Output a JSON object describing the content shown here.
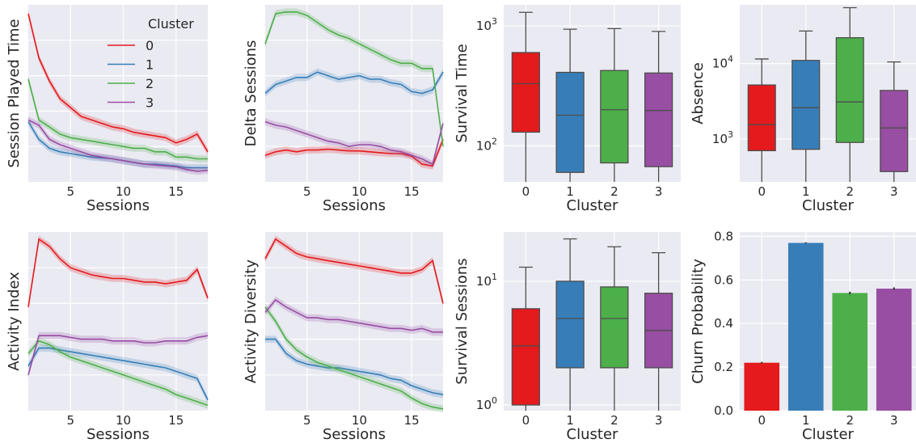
{
  "legend": {
    "title": "Cluster",
    "entries": [
      {
        "label": "0",
        "color": "#e41a1c"
      },
      {
        "label": "1",
        "color": "#377eb8"
      },
      {
        "label": "2",
        "color": "#4daf4a"
      },
      {
        "label": "3",
        "color": "#984ea3"
      }
    ]
  },
  "chart_data": [
    {
      "type": "line",
      "xlabel": "Sessions",
      "ylabel": "Session Played Time",
      "xlim": [
        1,
        18
      ],
      "ylim": [
        0,
        100
      ],
      "xticks": [
        "5",
        "10",
        "15"
      ],
      "yticks_shown": false,
      "x": [
        1,
        2,
        3,
        4,
        5,
        6,
        7,
        8,
        9,
        10,
        11,
        12,
        13,
        14,
        15,
        16,
        17,
        18
      ],
      "series": [
        {
          "name": "0",
          "values": [
            95,
            70,
            57,
            47,
            42,
            37,
            35,
            33,
            31,
            30,
            28,
            27,
            26,
            25,
            22,
            24,
            27,
            17
          ]
        },
        {
          "name": "1",
          "values": [
            34,
            24,
            19,
            17,
            16,
            15,
            14,
            13.5,
            13,
            12,
            11,
            10,
            10,
            9.5,
            9,
            8,
            8,
            8
          ]
        },
        {
          "name": "2",
          "values": [
            58,
            35,
            31,
            27,
            25,
            24,
            23,
            22,
            21,
            20,
            19,
            19,
            17,
            17,
            14,
            14,
            13,
            13
          ]
        },
        {
          "name": "3",
          "values": [
            35,
            32,
            24,
            21,
            19,
            17,
            15,
            14,
            13,
            12,
            11,
            10,
            9.5,
            9,
            8.5,
            7,
            6,
            6.5
          ]
        }
      ]
    },
    {
      "type": "line",
      "xlabel": "Sessions",
      "ylabel": "Delta Sessions",
      "xlim": [
        1,
        18
      ],
      "ylim": [
        0,
        100
      ],
      "xticks": [
        "5",
        "10",
        "15"
      ],
      "yticks_shown": false,
      "x": [
        1,
        2,
        3,
        4,
        5,
        6,
        7,
        8,
        9,
        10,
        11,
        12,
        13,
        14,
        15,
        16,
        17,
        18
      ],
      "series": [
        {
          "name": "0",
          "values": [
            15,
            17,
            18,
            17,
            18,
            18,
            18.5,
            18,
            17.5,
            17.5,
            17,
            16.5,
            16,
            16,
            14.5,
            10,
            9,
            24
          ]
        },
        {
          "name": "1",
          "values": [
            50,
            55,
            57,
            59,
            59,
            62,
            60,
            58,
            59,
            60,
            58,
            58,
            56,
            55,
            51,
            50,
            52,
            62
          ]
        },
        {
          "name": "2",
          "values": [
            78,
            95,
            96,
            96,
            94,
            90,
            86,
            83,
            81,
            78,
            75,
            72,
            69,
            67,
            67,
            64,
            64,
            20
          ]
        },
        {
          "name": "3",
          "values": [
            34,
            32,
            31,
            29,
            27,
            25,
            23,
            22,
            20,
            21,
            21,
            20,
            18,
            17,
            15,
            13,
            10,
            33
          ]
        }
      ]
    },
    {
      "type": "box",
      "xlabel": "Cluster",
      "ylabel": "Survival Time",
      "yscale": "log",
      "ylim": [
        50,
        1500
      ],
      "yticks": [
        "10^2",
        "10^3"
      ],
      "categories": [
        "0",
        "1",
        "2",
        "3"
      ],
      "boxes": [
        {
          "whislo": 50,
          "q1": 130,
          "med": 330,
          "q3": 600,
          "whishi": 1300
        },
        {
          "whislo": 50,
          "q1": 60,
          "med": 180,
          "q3": 410,
          "whishi": 940
        },
        {
          "whislo": 50,
          "q1": 72,
          "med": 200,
          "q3": 425,
          "whishi": 950
        },
        {
          "whislo": 50,
          "q1": 67,
          "med": 197,
          "q3": 405,
          "whishi": 900
        }
      ],
      "colors": [
        "#e41a1c",
        "#377eb8",
        "#4daf4a",
        "#984ea3"
      ]
    },
    {
      "type": "box",
      "xlabel": "Cluster",
      "ylabel": "Absence",
      "yscale": "log",
      "ylim": [
        270,
        60000
      ],
      "yticks": [
        "10^3",
        "10^4"
      ],
      "categories": [
        "0",
        "1",
        "2",
        "3"
      ],
      "boxes": [
        {
          "whislo": 270,
          "q1": 700,
          "med": 1550,
          "q3": 5200,
          "whishi": 11500
        },
        {
          "whislo": 270,
          "q1": 730,
          "med": 2600,
          "q3": 11000,
          "whishi": 27000
        },
        {
          "whislo": 270,
          "q1": 900,
          "med": 3100,
          "q3": 22000,
          "whishi": 55000
        },
        {
          "whislo": 270,
          "q1": 370,
          "med": 1400,
          "q3": 4400,
          "whishi": 10500
        }
      ],
      "colors": [
        "#e41a1c",
        "#377eb8",
        "#4daf4a",
        "#984ea3"
      ]
    },
    {
      "type": "line",
      "xlabel": "Sessions",
      "ylabel": "Activity Index",
      "xlim": [
        1,
        18
      ],
      "ylim": [
        0,
        100
      ],
      "xticks": [
        "5",
        "10",
        "15"
      ],
      "yticks_shown": false,
      "x": [
        1,
        2,
        3,
        4,
        5,
        6,
        7,
        8,
        9,
        10,
        11,
        12,
        13,
        14,
        15,
        16,
        17,
        18
      ],
      "series": [
        {
          "name": "0",
          "values": [
            58,
            96,
            92,
            85,
            80,
            78,
            76,
            75,
            74,
            74,
            73,
            72,
            72,
            71,
            72,
            73,
            79,
            63
          ]
        },
        {
          "name": "1",
          "values": [
            25,
            35,
            35,
            34,
            33,
            32,
            31,
            30,
            29,
            28,
            27,
            26,
            25,
            24,
            22,
            20,
            18,
            6
          ]
        },
        {
          "name": "2",
          "values": [
            32,
            39,
            37,
            33,
            30,
            28,
            26,
            24,
            22,
            20,
            18,
            16,
            14,
            12,
            9,
            7,
            5,
            3
          ]
        },
        {
          "name": "3",
          "values": [
            20,
            42,
            42,
            42,
            41,
            40,
            40,
            40,
            39,
            39,
            39,
            38,
            38,
            39,
            39,
            39,
            41,
            42
          ]
        }
      ]
    },
    {
      "type": "line",
      "xlabel": "Sessions",
      "ylabel": "Activity Diversity",
      "xlim": [
        1,
        18
      ],
      "ylim": [
        0,
        100
      ],
      "xticks": [
        "5",
        "10",
        "15"
      ],
      "yticks_shown": false,
      "x": [
        1,
        2,
        3,
        4,
        5,
        6,
        7,
        8,
        9,
        10,
        11,
        12,
        13,
        14,
        15,
        16,
        17,
        18
      ],
      "series": [
        {
          "name": "0",
          "values": [
            85,
            96,
            92,
            88,
            86,
            85,
            84,
            83,
            82,
            81,
            80,
            79,
            78,
            77,
            77,
            79,
            84,
            60
          ]
        },
        {
          "name": "1",
          "values": [
            40,
            40,
            32,
            28,
            26,
            25,
            24,
            24,
            23,
            22,
            21,
            20,
            18,
            17,
            14,
            12,
            10,
            9
          ]
        },
        {
          "name": "2",
          "values": [
            58,
            50,
            40,
            34,
            30,
            27,
            25,
            23,
            21,
            19,
            17,
            15,
            13,
            11,
            7,
            4,
            2,
            1
          ]
        },
        {
          "name": "3",
          "values": [
            55,
            62,
            58,
            55,
            52,
            52,
            51,
            51,
            50,
            49,
            48,
            47,
            46,
            46,
            45,
            46,
            44,
            44
          ]
        }
      ]
    },
    {
      "type": "box",
      "xlabel": "Cluster",
      "ylabel": "Survival Sessions",
      "yscale": "log",
      "ylim": [
        0.9,
        25
      ],
      "yticks": [
        "10^0",
        "10^1"
      ],
      "categories": [
        "0",
        "1",
        "2",
        "3"
      ],
      "boxes": [
        {
          "whislo": 0.9,
          "q1": 1,
          "med": 3,
          "q3": 6,
          "whishi": 13
        },
        {
          "whislo": 0.9,
          "q1": 2,
          "med": 5,
          "q3": 10,
          "whishi": 22
        },
        {
          "whislo": 0.9,
          "q1": 2,
          "med": 5,
          "q3": 9,
          "whishi": 19
        },
        {
          "whislo": 0.9,
          "q1": 2,
          "med": 4,
          "q3": 8,
          "whishi": 17
        }
      ],
      "colors": [
        "#e41a1c",
        "#377eb8",
        "#4daf4a",
        "#984ea3"
      ]
    },
    {
      "type": "bar",
      "xlabel": "Cluster",
      "ylabel": "Churn Probability",
      "ylim": [
        0,
        0.82
      ],
      "yticks": [
        "0.0",
        "0.2",
        "0.4",
        "0.6",
        "0.8"
      ],
      "categories": [
        "0",
        "1",
        "2",
        "3"
      ],
      "values": [
        0.22,
        0.77,
        0.54,
        0.56
      ],
      "errors": [
        0.004,
        0.003,
        0.006,
        0.006
      ],
      "colors": [
        "#e41a1c",
        "#377eb8",
        "#4daf4a",
        "#984ea3"
      ]
    }
  ]
}
